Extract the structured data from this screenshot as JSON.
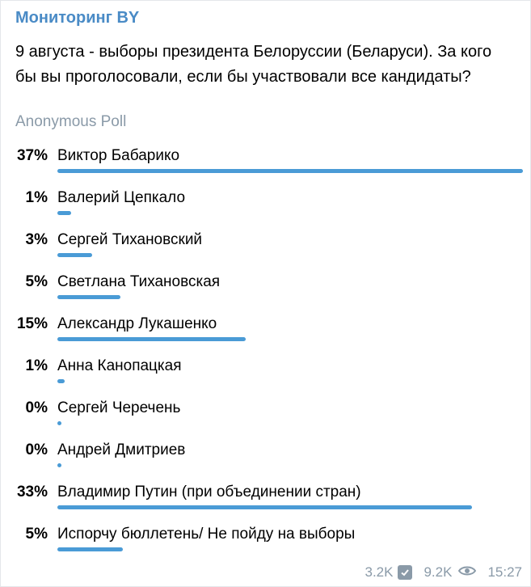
{
  "channel": {
    "name": "Мониторинг BY"
  },
  "poll": {
    "question": "9 августа - выборы президента Белоруссии (Беларуси). За кого бы вы проголосовали, если бы участвовали все кандидаты?",
    "type_label": "Anonymous Poll",
    "options": [
      {
        "percent_label": "37%",
        "label": "Виктор Бабарико",
        "fill": 1.0
      },
      {
        "percent_label": "1%",
        "label": "Валерий Цепкало",
        "fill": 0.03
      },
      {
        "percent_label": "3%",
        "label": "Сергей Тихановский",
        "fill": 0.075
      },
      {
        "percent_label": "5%",
        "label": "Светлана Тихановская",
        "fill": 0.135
      },
      {
        "percent_label": "15%",
        "label": "Александр Лукашенко",
        "fill": 0.405
      },
      {
        "percent_label": "1%",
        "label": "Анна Канопацкая",
        "fill": 0.016
      },
      {
        "percent_label": "0%",
        "label": "Сергей Черечень",
        "fill": 0.0
      },
      {
        "percent_label": "0%",
        "label": "Андрей Дмитриев",
        "fill": 0.0
      },
      {
        "percent_label": "33%",
        "label": "Владимир Путин (при объединении стран)",
        "fill": 0.89
      },
      {
        "percent_label": "5%",
        "label": "Испорчу бюллетень/ Не пойду на выборы",
        "fill": 0.14
      }
    ]
  },
  "footer": {
    "votes": "3.2K",
    "views": "9.2K",
    "time": "15:27"
  },
  "colors": {
    "accent": "#4a9bd6",
    "channel": "#4a8bc6",
    "muted": "#8a9aa8"
  },
  "icons": {
    "votes": "check-icon",
    "views": "eye-icon"
  }
}
